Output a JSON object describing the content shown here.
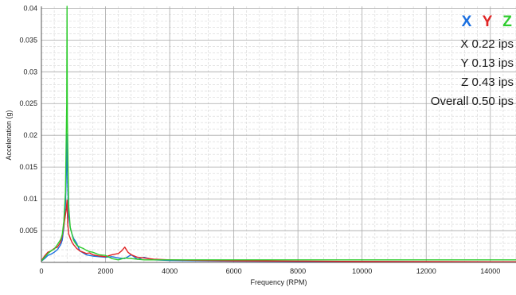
{
  "chart_data": {
    "type": "line",
    "xlabel": "Frequency (RPM)",
    "ylabel": "Acceleration (g)",
    "xlim": [
      0,
      14800
    ],
    "ylim": [
      0,
      0.0403
    ],
    "x_ticks": [
      0,
      2000,
      4000,
      6000,
      8000,
      10000,
      12000,
      14000
    ],
    "y_ticks": [
      0.005,
      0.01,
      0.015,
      0.02,
      0.025,
      0.03,
      0.035,
      0.04
    ],
    "x_tick_labels": [
      "0",
      "2000",
      "4000",
      "6000",
      "8000",
      "10000",
      "12000",
      "14000"
    ],
    "y_tick_labels": [
      "0.005",
      "0.01",
      "0.015",
      "0.02",
      "0.025",
      "0.03",
      "0.035",
      "0.04"
    ],
    "grid": true,
    "legend_position": "top-right",
    "series": [
      {
        "name": "X",
        "color": "#1a6fe0",
        "x": [
          0,
          100,
          200,
          300,
          400,
          500,
          600,
          650,
          700,
          750,
          780,
          800,
          820,
          850,
          900,
          950,
          1000,
          1100,
          1200,
          1300,
          1400,
          1500,
          1600,
          1800,
          2000,
          2200,
          2400,
          2600,
          2800,
          3000,
          3200,
          3500,
          4000,
          5000,
          6000,
          8000,
          10000,
          12000,
          14000,
          14800
        ],
        "y": [
          0.0002,
          0.0006,
          0.0011,
          0.0013,
          0.0016,
          0.002,
          0.0028,
          0.0035,
          0.0055,
          0.009,
          0.0145,
          0.0202,
          0.0125,
          0.0072,
          0.0055,
          0.0045,
          0.0038,
          0.003,
          0.0018,
          0.0015,
          0.0012,
          0.0011,
          0.001,
          0.0009,
          0.0008,
          0.0009,
          0.0007,
          0.0006,
          0.0012,
          0.0005,
          0.0008,
          0.0004,
          0.0003,
          0.00025,
          0.0002,
          0.00015,
          0.00012,
          0.0001,
          0.0001,
          0.0001
        ]
      },
      {
        "name": "Y",
        "color": "#e02424",
        "x": [
          0,
          100,
          200,
          300,
          400,
          500,
          600,
          650,
          700,
          750,
          780,
          800,
          820,
          850,
          900,
          950,
          1000,
          1100,
          1200,
          1300,
          1400,
          1500,
          1600,
          1700,
          1800,
          2000,
          2200,
          2400,
          2500,
          2600,
          2700,
          2800,
          3000,
          3200,
          3500,
          4000,
          5000,
          6000,
          8000,
          10000,
          12000,
          14000,
          14800
        ],
        "y": [
          0.0003,
          0.001,
          0.0016,
          0.0018,
          0.0022,
          0.0024,
          0.0032,
          0.0042,
          0.0058,
          0.0075,
          0.0085,
          0.0098,
          0.0062,
          0.0045,
          0.0038,
          0.0032,
          0.0028,
          0.0022,
          0.0018,
          0.0016,
          0.0014,
          0.0015,
          0.0012,
          0.0011,
          0.001,
          0.0009,
          0.0012,
          0.0014,
          0.0018,
          0.0024,
          0.0016,
          0.0012,
          0.0008,
          0.0007,
          0.0005,
          0.0004,
          0.0003,
          0.00025,
          0.0002,
          0.00015,
          0.00012,
          0.0001,
          0.0001
        ]
      },
      {
        "name": "Z",
        "color": "#2ecc2e",
        "x": [
          0,
          100,
          200,
          300,
          400,
          500,
          600,
          650,
          700,
          750,
          790,
          800,
          810,
          850,
          900,
          950,
          1000,
          1100,
          1200,
          1300,
          1400,
          1500,
          1600,
          1700,
          1800,
          2000,
          2200,
          2400,
          2600,
          2800,
          3000,
          3200,
          3500,
          4000,
          5000,
          6000,
          8000,
          10000,
          12000,
          14000,
          14800
        ],
        "y": [
          0.0002,
          0.0008,
          0.0014,
          0.0018,
          0.0021,
          0.0028,
          0.0036,
          0.0044,
          0.0065,
          0.011,
          0.025,
          0.0403,
          0.0225,
          0.009,
          0.0055,
          0.0045,
          0.0035,
          0.0027,
          0.0024,
          0.0022,
          0.0019,
          0.0017,
          0.0016,
          0.0014,
          0.0012,
          0.0011,
          0.0006,
          0.0004,
          0.0007,
          0.0006,
          0.0005,
          0.0004,
          0.0004,
          0.0004,
          0.0004,
          0.0004,
          0.0004,
          0.0004,
          0.0004,
          0.0004,
          0.0004
        ]
      }
    ]
  },
  "legend": {
    "letters": [
      {
        "text": "X",
        "color": "#1a6fe0"
      },
      {
        "text": "Y",
        "color": "#e02424"
      },
      {
        "text": "Z",
        "color": "#2ecc2e"
      }
    ],
    "stats": {
      "x": "X 0.22 ips",
      "y": "Y 0.13 ips",
      "z": "Z 0.43 ips",
      "overall": "Overall 0.50 ips"
    }
  }
}
